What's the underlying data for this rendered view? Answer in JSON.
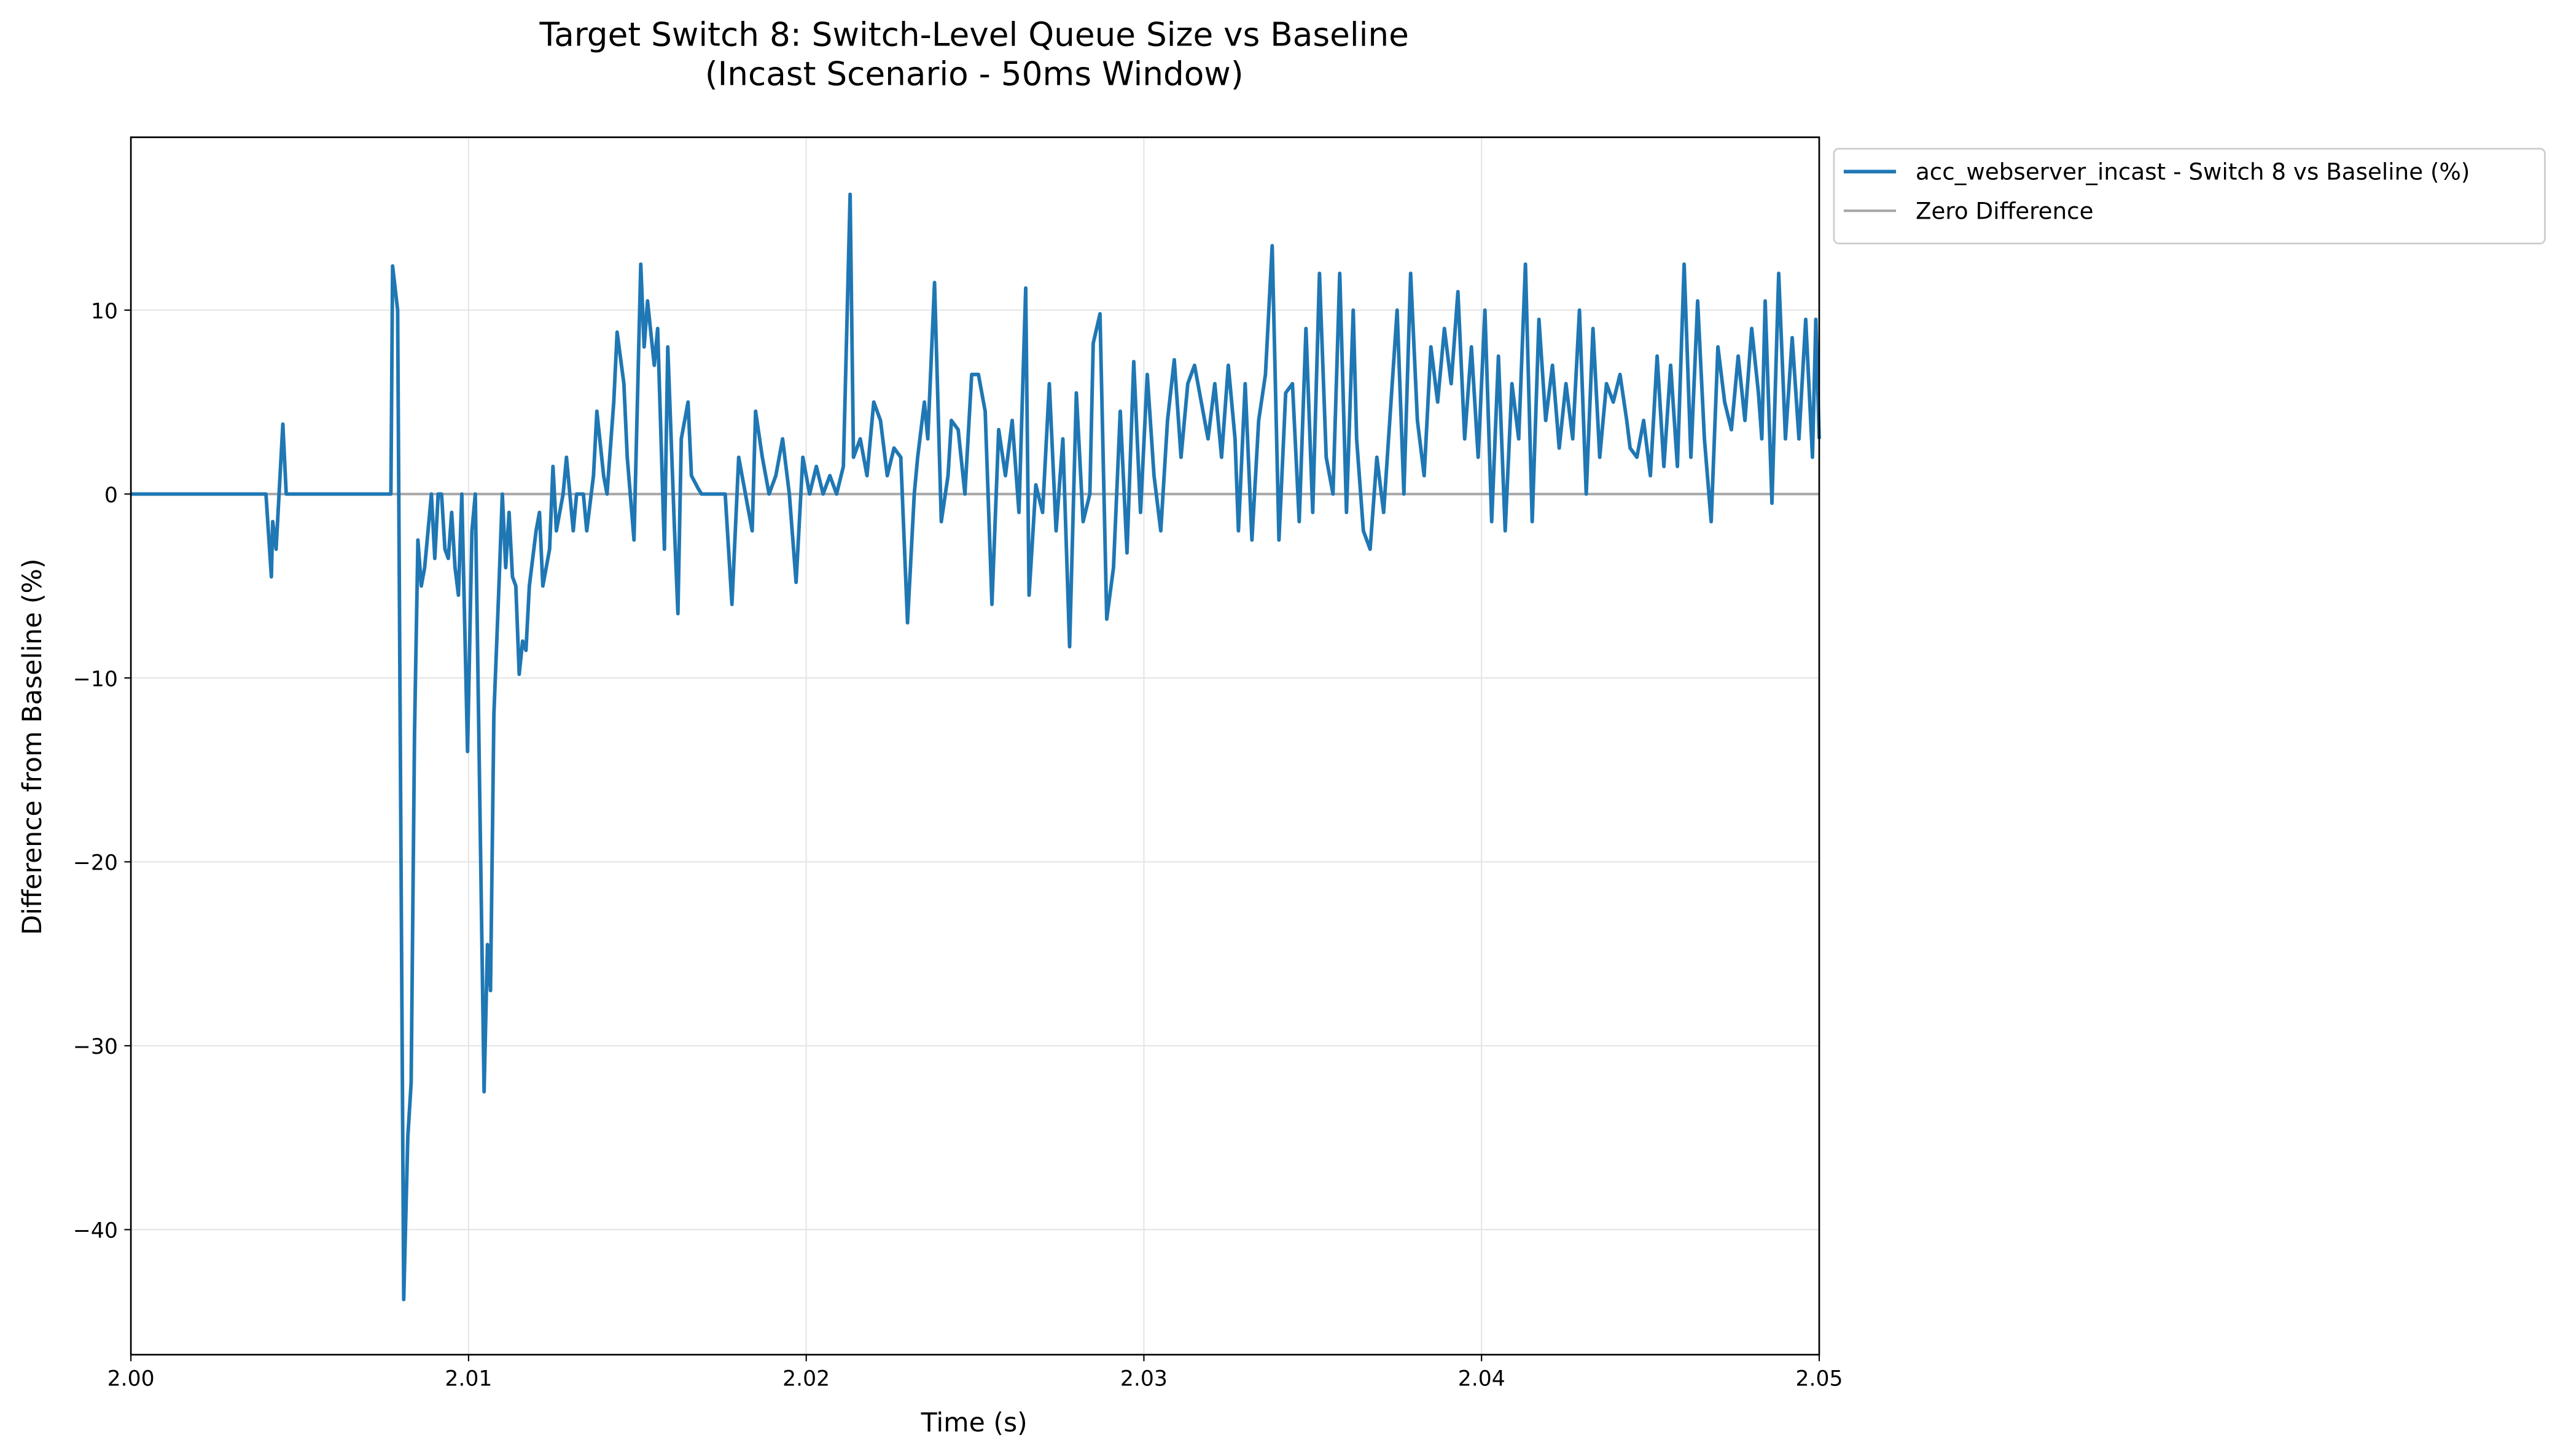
{
  "chart_data": {
    "type": "line",
    "title": "Target Switch 8: Switch-Level Queue Size vs Baseline",
    "subtitle": "(Incast Scenario - 50ms Window)",
    "x_label": "Time (s)",
    "y_label": "Difference from Baseline (%)",
    "xlim": [
      2.0,
      2.05
    ],
    "ylim": [
      -46.8,
      19.4
    ],
    "xticks": [
      {
        "value": 2.0,
        "label": "2.00"
      },
      2.01,
      2.02,
      2.03,
      2.04,
      2.05
    ],
    "yticks": [
      {
        "value": -40,
        "label": "−40"
      },
      {
        "value": -30,
        "label": "−30"
      },
      {
        "value": -20,
        "label": "−20"
      },
      {
        "value": -10,
        "label": "−10"
      },
      0,
      10
    ],
    "grid": true,
    "legend": "outside upper right",
    "series": [
      {
        "name": "acc_webserver_incast - Switch 8 vs Baseline (%)",
        "color": "#1f77b4",
        "x": [
          2.0,
          2.004,
          2.00416,
          2.0042,
          2.0043,
          2.0045,
          2.0046,
          2.0077,
          2.00775,
          2.0079,
          2.00808,
          2.0082,
          2.0083,
          2.0084,
          2.0085,
          2.0086,
          2.0087,
          2.0088,
          2.0089,
          2.009,
          2.0091,
          2.0092,
          2.0093,
          2.0094,
          2.0095,
          2.0096,
          2.0097,
          2.0098,
          2.00997,
          2.0101,
          2.0102,
          2.01046,
          2.01056,
          2.01065,
          2.01075,
          2.0109,
          2.011,
          2.0111,
          2.0112,
          2.0113,
          2.0114,
          2.0115,
          2.0116,
          2.0117,
          2.0118,
          2.012,
          2.0121,
          2.0122,
          2.0124,
          2.0125,
          2.0126,
          2.0128,
          2.0129,
          2.0131,
          2.0132,
          2.0134,
          2.0135,
          2.0137,
          2.0138,
          2.014,
          2.0141,
          2.0143,
          2.0144,
          2.0146,
          2.0147,
          2.0149,
          2.0151,
          2.0152,
          2.0153,
          2.0155,
          2.0156,
          2.0158,
          2.0159,
          2.0161,
          2.0162,
          2.0163,
          2.0165,
          2.0166,
          2.0168,
          2.0169,
          2.0176,
          2.0178,
          2.018,
          2.0182,
          2.0184,
          2.0185,
          2.0187,
          2.0189,
          2.0191,
          2.0193,
          2.0195,
          2.0197,
          2.0199,
          2.0201,
          2.0203,
          2.0205,
          2.0207,
          2.0209,
          2.0211,
          2.0213,
          2.0214,
          2.0216,
          2.0218,
          2.022,
          2.0222,
          2.0224,
          2.0226,
          2.0228,
          2.023,
          2.0232,
          2.0233,
          2.0235,
          2.0236,
          2.0238,
          2.024,
          2.0242,
          2.0243,
          2.0245,
          2.0247,
          2.0249,
          2.0251,
          2.0253,
          2.0255,
          2.0257,
          2.0259,
          2.0261,
          2.0263,
          2.0265,
          2.0266,
          2.0268,
          2.027,
          2.0272,
          2.0274,
          2.0276,
          2.0278,
          2.028,
          2.0282,
          2.0284,
          2.0285,
          2.0287,
          2.0289,
          2.0291,
          2.0293,
          2.0295,
          2.0297,
          2.0299,
          2.0301,
          2.0303,
          2.0305,
          2.0307,
          2.0309,
          2.0311,
          2.0313,
          2.0315,
          2.0317,
          2.0319,
          2.0321,
          2.0323,
          2.0325,
          2.0327,
          2.0328,
          2.033,
          2.0332,
          2.0334,
          2.0336,
          2.0338,
          2.034,
          2.0342,
          2.0344,
          2.0346,
          2.0348,
          2.035,
          2.0352,
          2.0354,
          2.0356,
          2.0358,
          2.036,
          2.0362,
          2.0363,
          2.0365,
          2.0367,
          2.0369,
          2.0371,
          2.0373,
          2.0375,
          2.0377,
          2.0379,
          2.0381,
          2.0383,
          2.0385,
          2.0387,
          2.0389,
          2.0391,
          2.0393,
          2.0395,
          2.0397,
          2.0399,
          2.0401,
          2.0403,
          2.0405,
          2.0407,
          2.0409,
          2.0411,
          2.0413,
          2.0415,
          2.0417,
          2.0419,
          2.0421,
          2.0423,
          2.0425,
          2.0427,
          2.0429,
          2.0431,
          2.0433,
          2.0435,
          2.0437,
          2.0439,
          2.0441,
          2.0443,
          2.0444,
          2.0446,
          2.0448,
          2.045,
          2.0452,
          2.0454,
          2.0456,
          2.0458,
          2.046,
          2.0462,
          2.0464,
          2.0466,
          2.0468,
          2.047,
          2.0472,
          2.0474,
          2.0476,
          2.0478,
          2.048,
          2.0482,
          2.0483,
          2.0484,
          2.0486,
          2.0488,
          2.049,
          2.0492,
          2.0494,
          2.0496,
          2.0498,
          2.0499,
          2.05
        ],
        "values": [
          0,
          0,
          -4.5,
          -1.5,
          -3,
          3.8,
          0,
          0,
          12.4,
          10,
          -43.8,
          -35,
          -32,
          -13,
          -2.5,
          -5,
          -4,
          -2,
          0,
          -3.5,
          0,
          0,
          -3,
          -3.5,
          -1,
          -4,
          -5.5,
          0,
          -14,
          -2,
          0,
          -32.5,
          -24.5,
          -27,
          -12,
          -5,
          0,
          -4,
          -1,
          -4.5,
          -5,
          -9.8,
          -8,
          -8.5,
          -5,
          -2,
          -1,
          -5,
          -3,
          1.5,
          -2,
          0,
          2,
          -2,
          0,
          0,
          -2,
          1,
          4.5,
          1,
          0,
          5,
          8.8,
          6,
          2,
          -2.5,
          12.5,
          8,
          10.5,
          7,
          9,
          -3,
          8,
          -2,
          -6.5,
          3,
          5,
          1,
          0.3,
          0,
          0,
          -6,
          2,
          0,
          -2,
          4.5,
          2,
          0,
          1,
          3,
          0,
          -4.8,
          2,
          0,
          1.5,
          0,
          1,
          0,
          1.5,
          16.3,
          2,
          3,
          1,
          5,
          4,
          1,
          2.5,
          2,
          -7,
          0,
          2,
          5,
          3,
          11.5,
          -1.5,
          1,
          4,
          3.5,
          0,
          6.5,
          6.5,
          4.5,
          -6,
          3.5,
          1,
          4,
          -1,
          11.2,
          -5.5,
          0.5,
          -1,
          6,
          -2,
          3,
          -8.3,
          5.5,
          -1.5,
          0,
          8.2,
          9.8,
          -6.8,
          -4,
          4.5,
          -3.2,
          7.2,
          -1,
          6.5,
          1,
          -2,
          4,
          7.3,
          2,
          6,
          7,
          5,
          3,
          6,
          2,
          7,
          3,
          -2,
          6,
          -2.5,
          4,
          6.5,
          13.5,
          -2.5,
          5.5,
          6,
          -1.5,
          9,
          -1,
          12,
          2,
          0,
          12,
          -1,
          10,
          3,
          -2,
          -3,
          2,
          -1,
          4.5,
          10,
          0,
          12,
          4,
          1,
          8,
          5,
          9,
          6,
          11,
          3,
          8,
          2,
          10,
          -1.5,
          7.5,
          -2,
          6,
          3,
          12.5,
          -1.5,
          9.5,
          4,
          7,
          2.5,
          6,
          3,
          10,
          0,
          9,
          2,
          6,
          5,
          6.5,
          4,
          2.5,
          2,
          4,
          1,
          7.5,
          1.5,
          7,
          1.5,
          12.5,
          2,
          10.5,
          3,
          -1.5,
          8,
          5,
          3.5,
          7.5,
          4,
          9,
          5.5,
          3,
          10.5,
          -0.5,
          12,
          3,
          8.5,
          3,
          9.5,
          2,
          9.5,
          3
        ]
      },
      {
        "name": "Zero Difference",
        "color": "#a6a6a6",
        "x": [
          2.0,
          2.05
        ],
        "values": [
          0,
          0
        ]
      }
    ]
  }
}
